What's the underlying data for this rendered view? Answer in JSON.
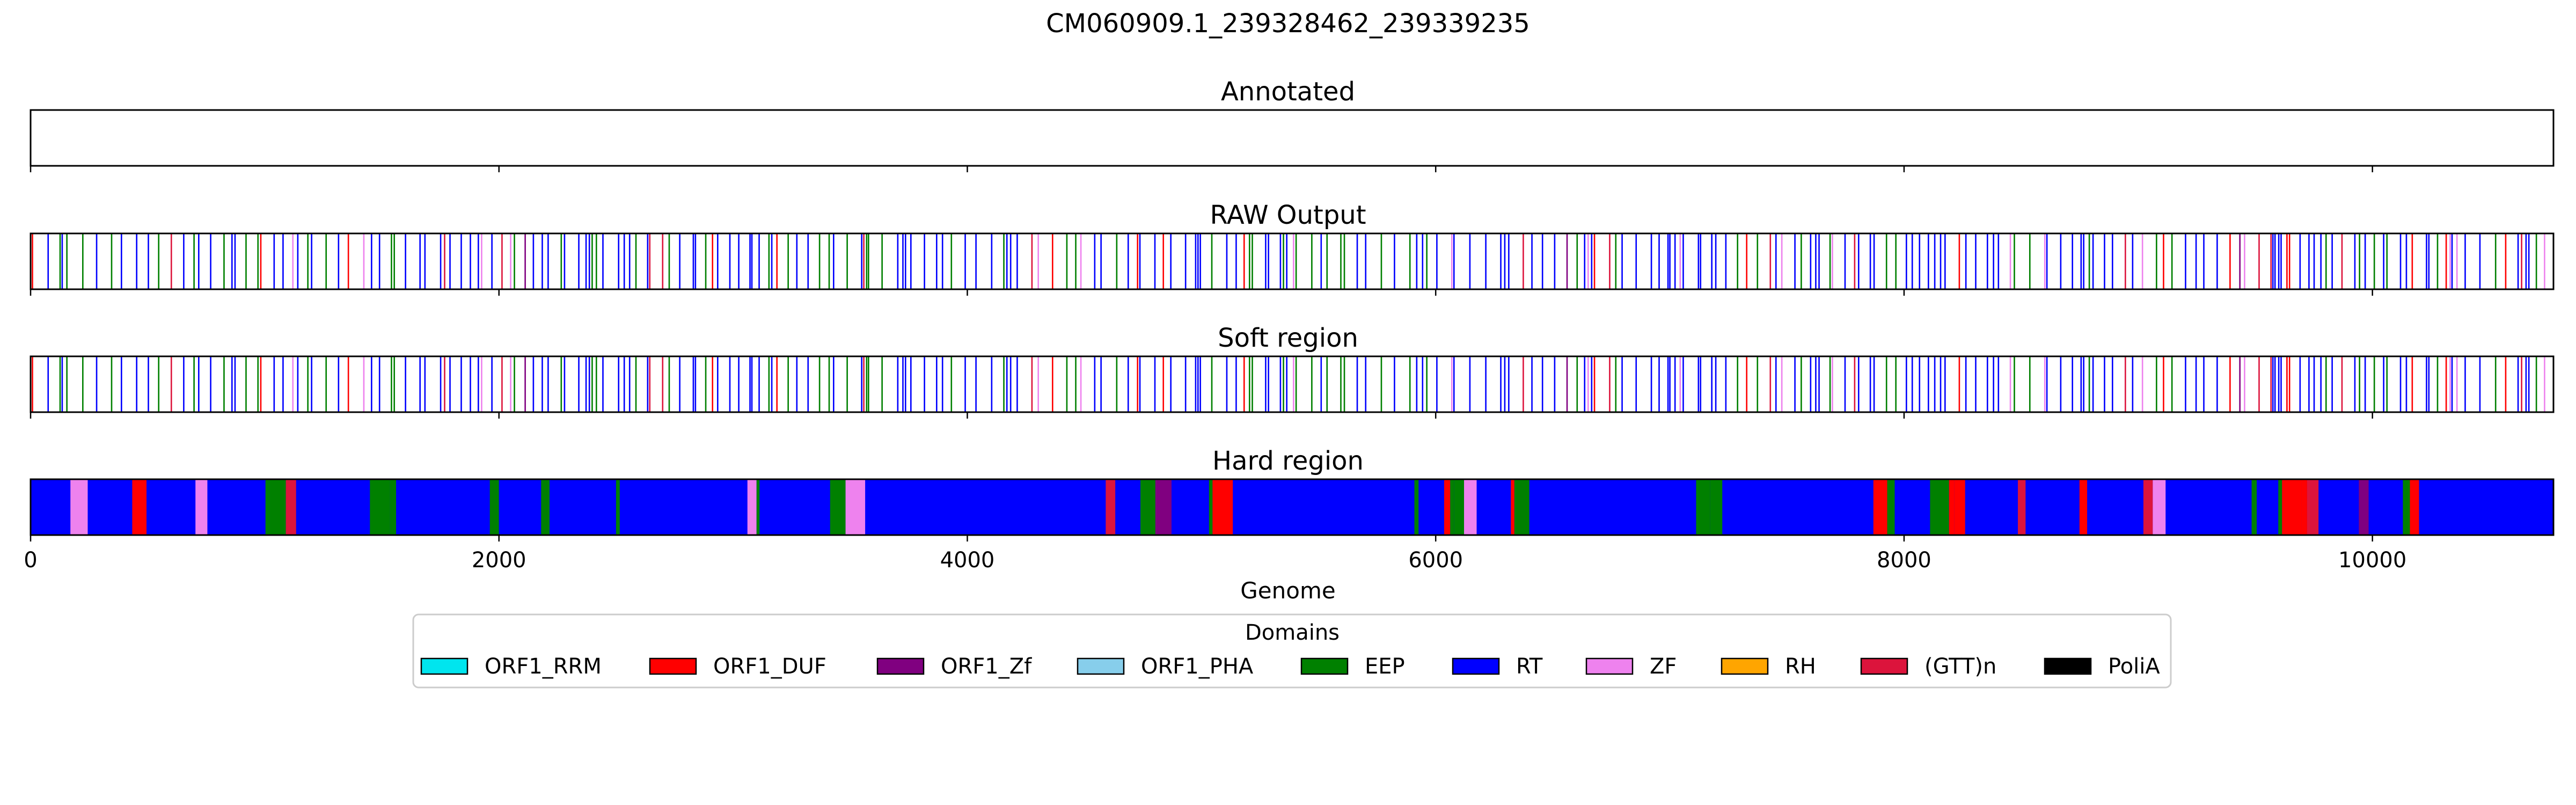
{
  "chart_data": {
    "type": "track",
    "title": "CM060909.1_239328462_239339235",
    "xlabel": "Genome",
    "xlim": [
      0,
      10773
    ],
    "xticks": [
      0,
      2000,
      4000,
      6000,
      8000,
      10000
    ],
    "xtick_labels": [
      "0",
      "2000",
      "4000",
      "6000",
      "8000",
      "10000"
    ],
    "grid": false,
    "tracks": [
      {
        "title": "Annotated",
        "style": "empty",
        "segments": []
      },
      {
        "title": "RAW Output",
        "style": "sparse",
        "segments": []
      },
      {
        "title": "Soft region",
        "style": "sparse",
        "segments": []
      },
      {
        "title": "Hard region",
        "style": "dense",
        "segments": []
      }
    ],
    "legend": {
      "title": "Domains",
      "placement": "bottom-center",
      "entries": [
        {
          "label": "ORF1_RRM",
          "color": "#00e5ee"
        },
        {
          "label": "ORF1_DUF",
          "color": "#ff0000"
        },
        {
          "label": "ORF1_Zf",
          "color": "#800080"
        },
        {
          "label": "ORF1_PHA",
          "color": "#87ceeb"
        },
        {
          "label": "EEP",
          "color": "#008000"
        },
        {
          "label": "RT",
          "color": "#0000ff"
        },
        {
          "label": "ZF",
          "color": "#ee82ee"
        },
        {
          "label": "RH",
          "color": "#ffa500"
        },
        {
          "label": "(GTT)n",
          "color": "#dc143c"
        },
        {
          "label": "PoliA",
          "color": "#000000"
        }
      ]
    }
  }
}
